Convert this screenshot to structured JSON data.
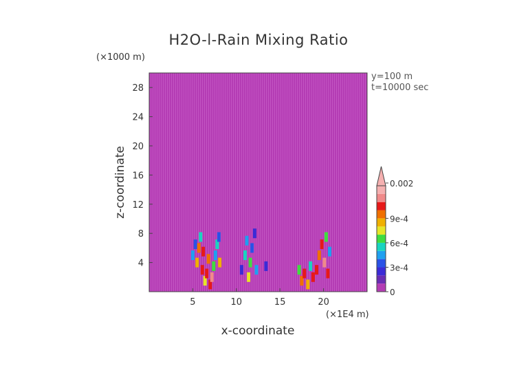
{
  "chart_data": {
    "type": "heatmap",
    "title": "H2O-l-Rain Mixing Ratio",
    "xlabel": "x-coordinate",
    "ylabel": "z-coordinate",
    "x_unit_label": "(×1E4 m)",
    "y_unit_label": "(×1000 m)",
    "annotations": [
      "y=100 m",
      "t=10000 sec"
    ],
    "xlim": [
      0,
      25
    ],
    "ylim": [
      0,
      30
    ],
    "x_ticks": [
      5,
      10,
      15,
      20
    ],
    "y_ticks": [
      4,
      8,
      12,
      16,
      20,
      24,
      28
    ],
    "x_tick_labels": [
      "5",
      "10",
      "15",
      "20"
    ],
    "y_tick_labels": [
      "4",
      "8",
      "12",
      "16",
      "20",
      "24",
      "28"
    ],
    "background_color": "#b43cb4",
    "colorbar": {
      "levels": [
        0,
        0.0001,
        0.0002,
        0.0003,
        0.0004,
        0.0005,
        0.0006,
        0.0007,
        0.0008,
        0.0009,
        0.001,
        0.0015,
        0.002
      ],
      "colors": [
        "#b43cb4",
        "#6a2db3",
        "#3b2bd6",
        "#2a52e6",
        "#1fa0f0",
        "#19d4c0",
        "#3fdc3f",
        "#e6e628",
        "#f0b000",
        "#f07000",
        "#e61919",
        "#f08a8a",
        "#f5b0b0"
      ],
      "tick_values": [
        0,
        0.0003,
        0.0006,
        0.0009,
        0.002
      ],
      "tick_labels": [
        "0",
        "3e-4",
        "6e-4",
        "9e-4",
        "0.002"
      ],
      "extend": "max"
    },
    "cells": [
      {
        "x": 5.0,
        "z": 5.0,
        "v": 0.0004
      },
      {
        "x": 5.3,
        "z": 6.5,
        "v": 0.0003
      },
      {
        "x": 5.5,
        "z": 4.0,
        "v": 0.0008
      },
      {
        "x": 5.7,
        "z": 6.0,
        "v": 0.0009
      },
      {
        "x": 5.9,
        "z": 7.5,
        "v": 0.0005
      },
      {
        "x": 6.1,
        "z": 3.0,
        "v": 0.0012
      },
      {
        "x": 6.2,
        "z": 5.5,
        "v": 0.0011
      },
      {
        "x": 6.4,
        "z": 1.5,
        "v": 0.0007
      },
      {
        "x": 6.6,
        "z": 2.5,
        "v": 0.0014
      },
      {
        "x": 6.8,
        "z": 4.5,
        "v": 0.0009
      },
      {
        "x": 7.0,
        "z": 1.0,
        "v": 0.0013
      },
      {
        "x": 7.2,
        "z": 2.0,
        "v": 0.0016
      },
      {
        "x": 7.4,
        "z": 3.5,
        "v": 0.0006
      },
      {
        "x": 7.6,
        "z": 5.0,
        "v": 0.0004
      },
      {
        "x": 7.8,
        "z": 6.5,
        "v": 0.0005
      },
      {
        "x": 8.0,
        "z": 7.5,
        "v": 0.0003
      },
      {
        "x": 8.1,
        "z": 4.0,
        "v": 0.0008
      },
      {
        "x": 10.6,
        "z": 3.0,
        "v": 0.0002
      },
      {
        "x": 11.0,
        "z": 5.0,
        "v": 0.0005
      },
      {
        "x": 11.2,
        "z": 7.0,
        "v": 0.0004
      },
      {
        "x": 11.4,
        "z": 2.0,
        "v": 0.0007
      },
      {
        "x": 11.6,
        "z": 4.0,
        "v": 0.0006
      },
      {
        "x": 11.8,
        "z": 6.0,
        "v": 0.0003
      },
      {
        "x": 12.1,
        "z": 8.0,
        "v": 0.0002
      },
      {
        "x": 12.3,
        "z": 3.0,
        "v": 0.0004
      },
      {
        "x": 13.4,
        "z": 3.5,
        "v": 0.0002
      },
      {
        "x": 17.2,
        "z": 3.0,
        "v": 0.0006
      },
      {
        "x": 17.5,
        "z": 1.5,
        "v": 0.0009
      },
      {
        "x": 17.8,
        "z": 2.5,
        "v": 0.0011
      },
      {
        "x": 18.2,
        "z": 1.0,
        "v": 0.0008
      },
      {
        "x": 18.5,
        "z": 3.5,
        "v": 0.0005
      },
      {
        "x": 18.8,
        "z": 2.0,
        "v": 0.0013
      },
      {
        "x": 19.2,
        "z": 3.0,
        "v": 0.001
      },
      {
        "x": 19.5,
        "z": 5.0,
        "v": 0.0009
      },
      {
        "x": 19.8,
        "z": 6.5,
        "v": 0.0012
      },
      {
        "x": 20.1,
        "z": 4.0,
        "v": 0.0015
      },
      {
        "x": 20.3,
        "z": 7.5,
        "v": 0.0006
      },
      {
        "x": 20.5,
        "z": 2.5,
        "v": 0.0011
      },
      {
        "x": 20.7,
        "z": 5.5,
        "v": 0.0004
      }
    ]
  }
}
